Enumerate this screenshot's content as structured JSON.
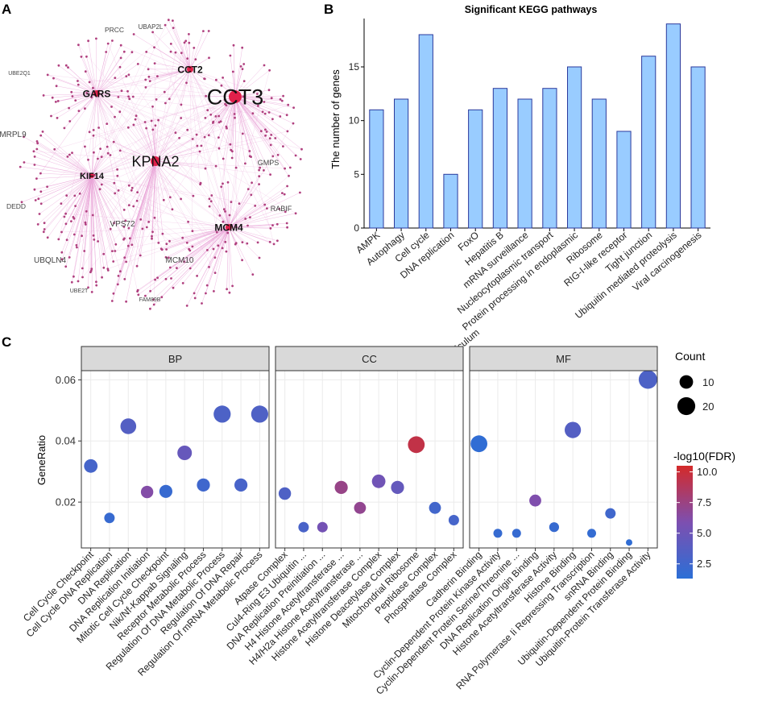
{
  "panel_labels": {
    "a": "A",
    "b": "B",
    "c": "C"
  },
  "colors": {
    "edge": "#e9a6d8",
    "node": "#b0407f",
    "hub": "#e0204a",
    "bar_fill": "#99ccff",
    "bar_stroke": "#2b3a9c",
    "strip_fill": "#d9d9d9",
    "panel_bg": "#ffffff",
    "grid": "#ebebeb",
    "fdr_low": "#2b6fd6",
    "fdr_mid": "#7d4fb0",
    "fdr_high": "#d42a2a"
  },
  "network": {
    "hubs": [
      {
        "label": "CCT3",
        "size": "large"
      },
      {
        "label": "KPNA2",
        "size": "medium"
      },
      {
        "label": "CCT2",
        "size": "small"
      },
      {
        "label": "GARS",
        "size": "small"
      },
      {
        "label": "KIF14",
        "size": "small"
      },
      {
        "label": "MCM4",
        "size": "small"
      }
    ],
    "labels": [
      "PRCC",
      "UBAP2L",
      "UBE2Q1",
      "MRPL9",
      "GMPS",
      "DEDD",
      "RABIF",
      "VPS72",
      "UBQLN4",
      "MCM10",
      "UBE2T",
      "FAM89B"
    ]
  },
  "chart_data": [
    {
      "type": "bar",
      "title": "Significant  KEGG pathways",
      "xlabel": "",
      "ylabel": "The number of genes",
      "ylim": [
        0,
        19.5
      ],
      "yticks": [
        0,
        5,
        10,
        15
      ],
      "categories": [
        "AMPK",
        "Autophagy",
        "Cell cycle",
        "DNA replication",
        "FoxO",
        "Hepatitis B",
        "mRNA surveillance",
        "Nucleocytoplasmic transport",
        "Protein processing in endoplasmic reticulum",
        "Ribosome",
        "RIG-I-like receptor",
        "Tight junction",
        "Ubiquitin mediated proteolysis",
        "Viral carcinogenesis"
      ],
      "tick_labels": [
        [
          "AMPK"
        ],
        [
          "Autophagy"
        ],
        [
          "Cell cycle"
        ],
        [
          "DNA replication"
        ],
        [
          "FoxO"
        ],
        [
          "Hepatitis B"
        ],
        [
          "mRNA surveillance"
        ],
        [
          "Nucleocytoplasmic transport"
        ],
        [
          "Protein processing in endoplasmic",
          "reticulum"
        ],
        [
          "Ribosome"
        ],
        [
          "RIG-I-like receptor"
        ],
        [
          "Tight junction"
        ],
        [
          "Ubiquitin mediated proteolysis"
        ],
        [
          "Viral carcinogenesis"
        ]
      ],
      "values": [
        11,
        12,
        18,
        5,
        11,
        13,
        12,
        13,
        15,
        12,
        9,
        16,
        19,
        15
      ]
    },
    {
      "type": "scatter",
      "title": "",
      "ylabel": "GeneRatio",
      "ylim": [
        0.005,
        0.063
      ],
      "yticks": [
        0.02,
        0.04,
        0.06
      ],
      "ytick_labels": [
        "0.02",
        "0.04",
        "0.06"
      ],
      "facets": [
        {
          "name": "BP",
          "categories": [
            "Cell Cycle Checkpoint",
            "Cell Cycle DNA Replication",
            "DNA Replication",
            "DNA Replication Initiation",
            "Mitotic Cell Cycle Checkpoint",
            "Nik/Nf-Kappab Signaling",
            "Receptor Metabolic Process",
            "Regulation Of DNA Metabolic Process",
            "Regulation Of DNA Repair",
            "Regulation Of mRNA Metabolic Process"
          ],
          "gene_ratio": [
            0.0318,
            0.0148,
            0.0448,
            0.0233,
            0.0235,
            0.0361,
            0.0256,
            0.0488,
            0.0256,
            0.0488
          ],
          "count": [
            10,
            5,
            15,
            8,
            9,
            12,
            9,
            18,
            9,
            18
          ],
          "neg_log10_fdr": [
            2.8,
            2.0,
            3.6,
            6.2,
            2.0,
            4.6,
            2.4,
            3.2,
            2.9,
            3.3
          ]
        },
        {
          "name": "CC",
          "categories": [
            "Atpase Complex",
            "Cul4-Ring E3 Ubiquitin ...",
            "DNA Replication Preinitiation ...",
            "H4 Histone Acetyltransferase ...",
            "H4/H2a Histone Acetyltransferase ...",
            "Histone Acetyltransferase Complex",
            "Histone Deacetylase Complex",
            "Mitochondrial Ribosome",
            "Peptidase Complex",
            "Phosphatase Complex"
          ],
          "gene_ratio": [
            0.0228,
            0.0118,
            0.0118,
            0.0248,
            0.0181,
            0.0268,
            0.0248,
            0.0388,
            0.0181,
            0.0141
          ],
          "count": [
            8,
            5,
            5,
            9,
            7,
            10,
            9,
            17,
            7,
            5
          ],
          "neg_log10_fdr": [
            3.3,
            3.0,
            5.4,
            7.3,
            7.0,
            5.2,
            4.5,
            9.5,
            2.6,
            2.8
          ]
        },
        {
          "name": "MF",
          "categories": [
            "Cadherin Binding",
            "Cyclin-Dependent Protein Kinase Activity",
            "Cyclin-Dependent Protein Serine/Threonine ...",
            "DNA Replication Origin Binding",
            "Histone Acetyltransferase Activity",
            "Histone Binding",
            "RNA Polymerase Ii Repressing Transcription",
            "snRNA Binding",
            "Ubiquitin-Dependent Protein Binding",
            "Ubiquitin-Protein Transferase Activity"
          ],
          "gene_ratio": [
            0.0391,
            0.0098,
            0.0098,
            0.0205,
            0.0118,
            0.0436,
            0.0098,
            0.0163,
            0.0068,
            0.0601
          ],
          "count": [
            17,
            3,
            3,
            7,
            4,
            16,
            3,
            5,
            1,
            22
          ],
          "neg_log10_fdr": [
            1.6,
            1.9,
            1.9,
            6.0,
            2.0,
            3.6,
            1.8,
            2.5,
            1.6,
            3.2
          ]
        }
      ],
      "legend_count": {
        "title": "Count",
        "values": [
          10,
          20
        ]
      },
      "legend_color": {
        "title": "-log10(FDR)",
        "ticks": [
          2.5,
          5.0,
          7.5,
          10.0
        ],
        "tick_labels": [
          "2.5",
          "5.0",
          "7.5",
          "10.0"
        ],
        "range": [
          1.3,
          10.5
        ]
      }
    }
  ]
}
